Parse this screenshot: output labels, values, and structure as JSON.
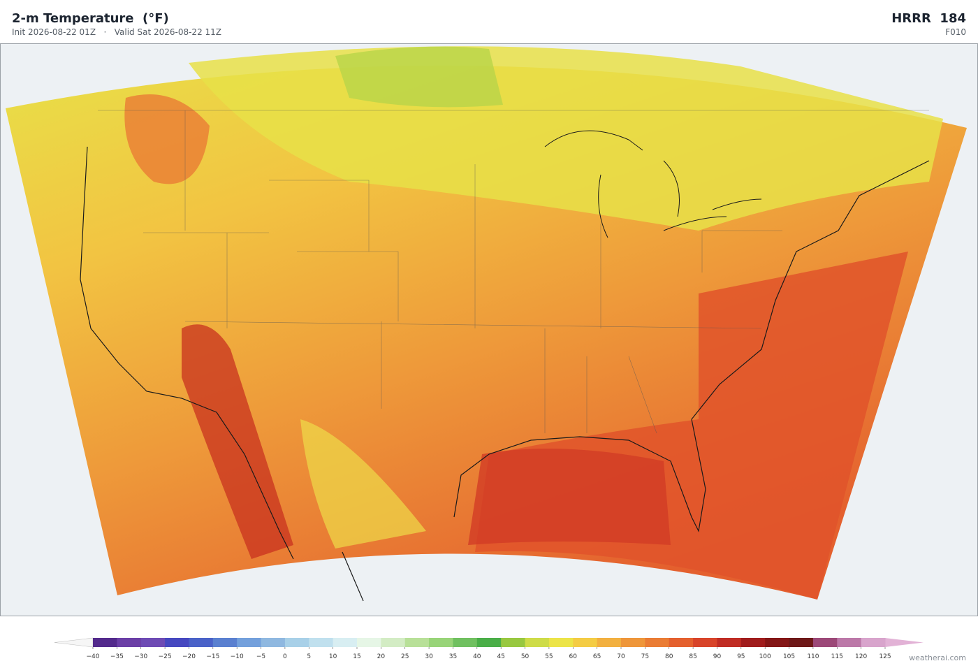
{
  "header": {
    "title": "2-m Temperature  (°F)",
    "subtitle": "Init 2026-08-22 01Z   ·   Valid Sat 2026-08-22 11Z",
    "model": "HRRR  184",
    "forecast_hour": "F010"
  },
  "colorbar": {
    "ticks": [
      {
        "value": -40,
        "label": "−40"
      },
      {
        "value": -35,
        "label": "−35"
      },
      {
        "value": -30,
        "label": "−30"
      },
      {
        "value": -25,
        "label": "−25"
      },
      {
        "value": -20,
        "label": "−20"
      },
      {
        "value": -15,
        "label": "−15"
      },
      {
        "value": -10,
        "label": "−10"
      },
      {
        "value": -5,
        "label": "−5"
      },
      0,
      5,
      10,
      15,
      20,
      25,
      30,
      35,
      40,
      45,
      50,
      55,
      60,
      65,
      70,
      75,
      80,
      85,
      90,
      95,
      100,
      105,
      110,
      115,
      120,
      125
    ],
    "colors": [
      "#532a8c",
      "#6b3fa6",
      "#6e4bb4",
      "#4648c0",
      "#4a62c8",
      "#5a80d0",
      "#73a0dc",
      "#8fb8e0",
      "#a8d0e8",
      "#c0e0ee",
      "#d8eef2",
      "#e6f6e6",
      "#d3ecc4",
      "#b8e098",
      "#98d478",
      "#70c060",
      "#4aae48",
      "#98c840",
      "#cedc48",
      "#ece448",
      "#f4cc44",
      "#f2b040",
      "#ee963a",
      "#ea7c34",
      "#e4602e",
      "#d8442a",
      "#c02c24",
      "#a01c1c",
      "#841616",
      "#6e1818",
      "#9c4878",
      "#bc78a8",
      "#d8a4cc"
    ],
    "under_color": "#f6f6f6",
    "over_color": "#e2b2d6"
  },
  "footer": {
    "credit": "weatherai.com"
  }
}
